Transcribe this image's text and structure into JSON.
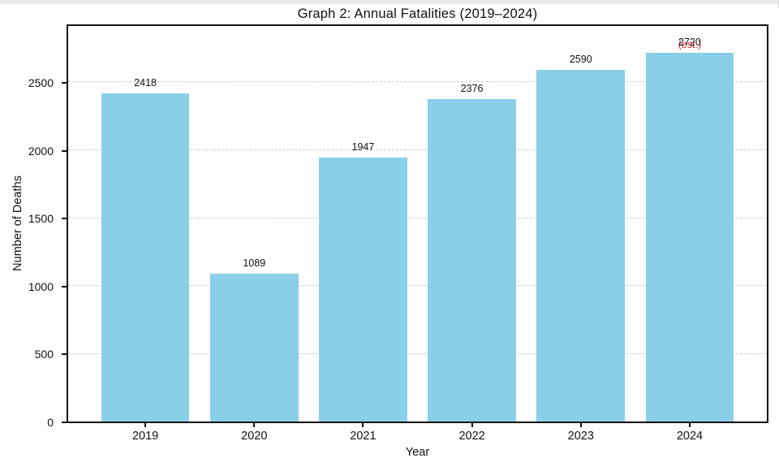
{
  "window": {
    "top_strip_color": "#e9e9e9",
    "background": "#ffffff"
  },
  "chart_data": {
    "type": "bar",
    "title": "Graph 2: Annual Fatalities (2019–2024)",
    "xlabel": "Year",
    "ylabel": "Number of Deaths",
    "categories": [
      "2019",
      "2020",
      "2021",
      "2022",
      "2023",
      "2024"
    ],
    "values": [
      2418,
      1089,
      1947,
      2376,
      2590,
      2720
    ],
    "bar_value_labels": [
      "2418",
      "1089",
      "1947",
      "2376",
      "2590",
      "2720"
    ],
    "last_bar_annotation": "(est.)",
    "annotation_applies_to": "2024",
    "yticks": [
      0,
      500,
      1000,
      1500,
      2000,
      2500
    ],
    "gridline_values": [
      500,
      1000,
      1500,
      2000,
      2500
    ],
    "ylim": [
      0,
      2916
    ],
    "grid": "horizontal dashed, behind bars",
    "legend": "none",
    "colors": {
      "bar": "#89cfe8",
      "annotation": "#d62b2b",
      "gridline": "#cccccc",
      "axis": "#111111",
      "text": "#111111"
    }
  }
}
